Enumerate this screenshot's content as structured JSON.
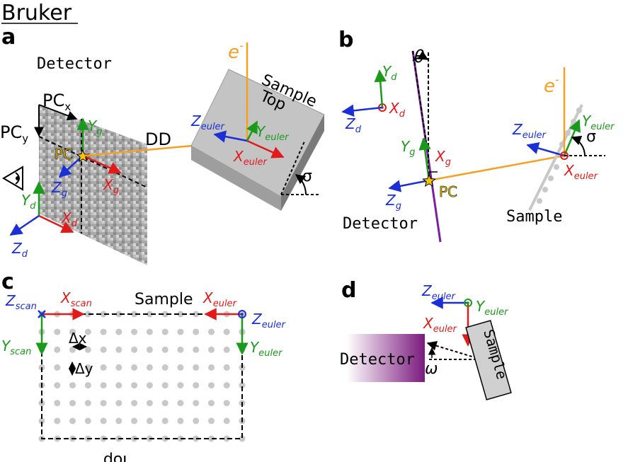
{
  "brand": "Bruker",
  "panels": {
    "a": "a",
    "b": "b",
    "c": "c",
    "d": "d"
  },
  "colors": {
    "x_axis": "#e21a1a",
    "y_axis": "#1a9a1a",
    "z_axis": "#1a2fd6",
    "beam": "#f5a020",
    "pc_star": "#f5c400",
    "detector_line": "#7b1fa2",
    "purple_grad_end": "#7b1a7e",
    "grid_dot": "#c8c8c8"
  },
  "panel_a": {
    "detector_label": "Detector",
    "pcx": {
      "base": "PC",
      "sub": "x"
    },
    "pcy": {
      "base": "PC",
      "sub": "y"
    },
    "pc": "PC",
    "dd": "DD",
    "sample_label": "Sample",
    "top_label": "Top",
    "beam_label": {
      "base": "e",
      "sup": "-"
    },
    "sigma": "σ",
    "yg": {
      "base": "Y",
      "sub": "g"
    },
    "xg": {
      "base": "X",
      "sub": "g"
    },
    "zg": {
      "base": "Z",
      "sub": "g"
    },
    "yd": {
      "base": "Y",
      "sub": "d"
    },
    "xd": {
      "base": "X",
      "sub": "d"
    },
    "zd": {
      "base": "Z",
      "sub": "d"
    },
    "zeuler": {
      "base": "Z",
      "sub": "euler"
    },
    "yeuler": {
      "base": "Y",
      "sub": "euler"
    },
    "xeuler": {
      "base": "X",
      "sub": "euler"
    }
  },
  "panel_b": {
    "theta": "θ",
    "yd": {
      "base": "Y",
      "sub": "d"
    },
    "xd": {
      "base": "X",
      "sub": "d"
    },
    "zd": {
      "base": "Z",
      "sub": "d"
    },
    "yg": {
      "base": "Y",
      "sub": "g"
    },
    "xg": {
      "base": "X",
      "sub": "g"
    },
    "zg": {
      "base": "Z",
      "sub": "g"
    },
    "pc": "PC",
    "detector_label": "Detector",
    "beam_label": {
      "base": "e",
      "sup": "-"
    },
    "zeuler": {
      "base": "Z",
      "sub": "euler"
    },
    "yeuler": {
      "base": "Y",
      "sub": "euler"
    },
    "xeuler": {
      "base": "X",
      "sub": "euler"
    },
    "sigma": "σ",
    "sample_label": "Sample"
  },
  "panel_c": {
    "zscan": {
      "base": "Z",
      "sub": "scan"
    },
    "xscan": {
      "base": "X",
      "sub": "scan"
    },
    "yscan": {
      "base": "Y",
      "sub": "scan"
    },
    "sample_label": "Sample",
    "xeuler": {
      "base": "X",
      "sub": "euler"
    },
    "zeuler": {
      "base": "Z",
      "sub": "euler"
    },
    "yeuler": {
      "base": "Y",
      "sub": "euler"
    },
    "dx": "Δx",
    "dy": "Δy",
    "top_label": "Top",
    "grid": {
      "cols": 14,
      "rows": 8
    }
  },
  "panel_d": {
    "zeuler": {
      "base": "Z",
      "sub": "euler"
    },
    "yeuler": {
      "base": "Y",
      "sub": "euler"
    },
    "xeuler": {
      "base": "X",
      "sub": "euler"
    },
    "detector_label": "Detector",
    "sample_label": "Sample",
    "omega": "ω"
  }
}
